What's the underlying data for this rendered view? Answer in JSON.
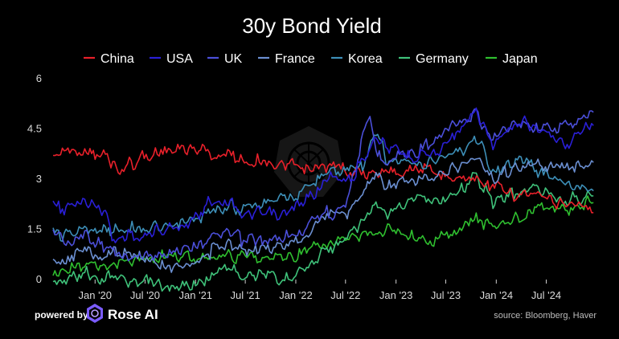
{
  "chart_data": {
    "type": "line",
    "title": "30y Bond Yield",
    "xlabel": "",
    "ylabel": "",
    "x_range": [
      "2019-08-01",
      "2024-12-31"
    ],
    "ylim": [
      0,
      6
    ],
    "y_ticks": [
      0,
      1.5,
      3,
      4.5,
      6
    ],
    "y_tick_labels": [
      "0",
      "1.5",
      "3",
      "4.5",
      "6"
    ],
    "x_ticks": [
      "2020-01-01",
      "2020-07-01",
      "2021-01-01",
      "2021-07-01",
      "2022-01-01",
      "2022-07-01",
      "2023-01-01",
      "2023-07-01",
      "2024-01-01",
      "2024-07-01"
    ],
    "x_tick_labels": [
      "Jan '20",
      "Jul '20",
      "Jan '21",
      "Jul '21",
      "Jan '22",
      "Jul '22",
      "Jan '23",
      "Jul '23",
      "Jan '24",
      "Jul '24"
    ],
    "grid": false,
    "legend_position": "top",
    "series": [
      {
        "name": "China",
        "color": "#e8202a",
        "x": [
          "2019-08-01",
          "2019-10-01",
          "2019-12-01",
          "2020-02-01",
          "2020-04-01",
          "2020-06-01",
          "2020-08-01",
          "2020-10-01",
          "2020-12-01",
          "2021-02-01",
          "2021-04-01",
          "2021-06-01",
          "2021-08-01",
          "2021-10-01",
          "2021-12-01",
          "2022-02-01",
          "2022-04-01",
          "2022-06-01",
          "2022-08-01",
          "2022-10-01",
          "2022-12-01",
          "2023-02-01",
          "2023-04-01",
          "2023-06-01",
          "2023-08-01",
          "2023-10-01",
          "2023-12-01",
          "2024-02-01",
          "2024-04-01",
          "2024-06-01",
          "2024-08-01",
          "2024-10-01",
          "2024-12-20"
        ],
        "y": [
          3.7,
          3.85,
          3.9,
          3.7,
          3.3,
          3.55,
          3.75,
          3.85,
          3.9,
          3.85,
          3.7,
          3.7,
          3.5,
          3.5,
          3.4,
          3.35,
          3.35,
          3.35,
          3.2,
          3.15,
          3.25,
          3.3,
          3.3,
          3.2,
          3.05,
          3.0,
          2.85,
          2.65,
          2.5,
          2.5,
          2.35,
          2.3,
          2.0
        ]
      },
      {
        "name": "USA",
        "color": "#2a1fd6",
        "x": [
          "2019-08-01",
          "2019-10-01",
          "2019-12-01",
          "2020-02-01",
          "2020-03-15",
          "2020-05-01",
          "2020-07-01",
          "2020-09-01",
          "2020-11-01",
          "2021-01-01",
          "2021-03-01",
          "2021-05-01",
          "2021-07-01",
          "2021-09-01",
          "2021-11-01",
          "2022-01-01",
          "2022-03-01",
          "2022-05-01",
          "2022-07-01",
          "2022-08-01",
          "2022-10-20",
          "2022-12-01",
          "2023-02-01",
          "2023-04-01",
          "2023-06-01",
          "2023-08-01",
          "2023-10-20",
          "2023-12-20",
          "2024-02-01",
          "2024-04-20",
          "2024-06-01",
          "2024-08-01",
          "2024-09-15",
          "2024-11-15",
          "2024-12-20"
        ],
        "y": [
          2.15,
          2.2,
          2.35,
          2.05,
          1.1,
          1.35,
          1.3,
          1.45,
          1.6,
          1.85,
          2.35,
          2.3,
          1.95,
          2.05,
          1.9,
          2.15,
          2.45,
          3.1,
          3.0,
          3.1,
          4.35,
          3.95,
          3.8,
          3.7,
          3.85,
          4.3,
          5.05,
          4.05,
          4.3,
          4.75,
          4.5,
          4.15,
          4.0,
          4.55,
          4.6
        ]
      },
      {
        "name": "UK",
        "color": "#4b4fd9",
        "x": [
          "2019-08-01",
          "2019-10-01",
          "2019-12-01",
          "2020-02-01",
          "2020-03-15",
          "2020-05-01",
          "2020-07-01",
          "2020-09-01",
          "2020-11-01",
          "2021-01-01",
          "2021-03-01",
          "2021-05-01",
          "2021-07-01",
          "2021-09-01",
          "2021-11-01",
          "2022-01-01",
          "2022-03-01",
          "2022-05-01",
          "2022-07-01",
          "2022-09-28",
          "2022-10-20",
          "2022-12-01",
          "2023-02-01",
          "2023-04-01",
          "2023-06-01",
          "2023-08-01",
          "2023-10-20",
          "2023-12-20",
          "2024-02-01",
          "2024-04-20",
          "2024-06-01",
          "2024-08-01",
          "2024-09-15",
          "2024-11-15",
          "2024-12-20"
        ],
        "y": [
          1.4,
          1.15,
          1.3,
          1.05,
          0.85,
          0.65,
          0.65,
          0.75,
          0.85,
          0.95,
          1.3,
          1.3,
          1.2,
          1.1,
          1.2,
          1.3,
          1.75,
          2.0,
          2.2,
          4.95,
          3.75,
          3.5,
          3.8,
          3.9,
          4.2,
          4.6,
          4.9,
          4.25,
          4.5,
          4.65,
          4.55,
          4.55,
          4.65,
          4.8,
          5.0
        ]
      },
      {
        "name": "France",
        "color": "#6b8fd1",
        "x": [
          "2019-08-01",
          "2019-10-01",
          "2019-12-01",
          "2020-02-01",
          "2020-03-15",
          "2020-05-01",
          "2020-07-01",
          "2020-09-01",
          "2020-11-01",
          "2021-01-01",
          "2021-03-01",
          "2021-05-01",
          "2021-07-01",
          "2021-09-01",
          "2021-11-01",
          "2022-01-01",
          "2022-03-01",
          "2022-05-01",
          "2022-07-01",
          "2022-09-01",
          "2022-10-20",
          "2022-12-01",
          "2023-02-01",
          "2023-04-01",
          "2023-06-01",
          "2023-08-01",
          "2023-10-20",
          "2023-12-20",
          "2024-02-01",
          "2024-04-20",
          "2024-06-01",
          "2024-08-01",
          "2024-09-15",
          "2024-11-15",
          "2024-12-20"
        ],
        "y": [
          0.45,
          0.7,
          0.85,
          0.6,
          0.95,
          0.75,
          0.6,
          0.45,
          0.4,
          0.45,
          0.85,
          1.1,
          0.9,
          1.0,
          0.95,
          1.2,
          1.5,
          2.0,
          2.0,
          2.5,
          3.1,
          2.8,
          2.9,
          3.0,
          3.1,
          3.4,
          3.65,
          3.0,
          3.2,
          3.4,
          3.5,
          3.3,
          3.4,
          3.5,
          3.5
        ]
      },
      {
        "name": "Korea",
        "color": "#3d8fb8",
        "x": [
          "2019-08-01",
          "2019-10-01",
          "2019-12-01",
          "2020-02-01",
          "2020-03-15",
          "2020-05-01",
          "2020-07-01",
          "2020-09-01",
          "2020-11-01",
          "2021-01-01",
          "2021-03-01",
          "2021-05-01",
          "2021-07-01",
          "2021-09-01",
          "2021-11-01",
          "2022-01-01",
          "2022-03-01",
          "2022-05-01",
          "2022-07-01",
          "2022-09-01",
          "2022-10-20",
          "2022-12-01",
          "2023-02-01",
          "2023-04-01",
          "2023-06-01",
          "2023-08-01",
          "2023-10-20",
          "2023-12-20",
          "2024-02-01",
          "2024-04-20",
          "2024-06-01",
          "2024-08-01",
          "2024-09-15",
          "2024-11-15",
          "2024-12-20"
        ],
        "y": [
          1.3,
          1.45,
          1.6,
          1.45,
          1.5,
          1.55,
          1.5,
          1.55,
          1.65,
          1.75,
          2.15,
          2.15,
          2.15,
          2.25,
          2.45,
          2.4,
          2.85,
          3.25,
          3.3,
          3.4,
          4.35,
          3.55,
          3.5,
          3.35,
          3.55,
          3.75,
          4.2,
          3.25,
          3.4,
          3.6,
          3.3,
          3.0,
          2.85,
          2.8,
          2.65
        ]
      },
      {
        "name": "Germany",
        "color": "#3fc27a",
        "x": [
          "2019-08-01",
          "2019-10-01",
          "2019-12-01",
          "2020-02-01",
          "2020-03-15",
          "2020-05-01",
          "2020-07-01",
          "2020-09-01",
          "2020-11-01",
          "2021-01-01",
          "2021-03-01",
          "2021-05-01",
          "2021-07-01",
          "2021-09-01",
          "2021-11-01",
          "2022-01-01",
          "2022-03-01",
          "2022-05-01",
          "2022-07-01",
          "2022-09-01",
          "2022-10-20",
          "2022-12-01",
          "2023-02-01",
          "2023-04-01",
          "2023-06-01",
          "2023-08-01",
          "2023-10-20",
          "2023-12-20",
          "2024-02-01",
          "2024-04-20",
          "2024-06-01",
          "2024-08-01",
          "2024-09-15",
          "2024-11-15",
          "2024-12-20"
        ],
        "y": [
          -0.1,
          -0.05,
          0.2,
          0.0,
          0.1,
          -0.05,
          -0.1,
          -0.15,
          -0.25,
          -0.15,
          0.15,
          0.35,
          0.1,
          0.2,
          0.0,
          0.2,
          0.5,
          1.0,
          1.2,
          1.65,
          2.3,
          1.95,
          2.35,
          2.45,
          2.3,
          2.5,
          3.2,
          2.3,
          2.45,
          2.7,
          2.65,
          2.5,
          2.4,
          2.45,
          2.5
        ]
      },
      {
        "name": "Japan",
        "color": "#2fbf2f",
        "x": [
          "2019-08-01",
          "2019-10-01",
          "2019-12-01",
          "2020-02-01",
          "2020-03-15",
          "2020-05-01",
          "2020-07-01",
          "2020-09-01",
          "2020-11-01",
          "2021-01-01",
          "2021-03-01",
          "2021-05-01",
          "2021-07-01",
          "2021-09-01",
          "2021-11-01",
          "2022-01-01",
          "2022-03-01",
          "2022-05-01",
          "2022-07-01",
          "2022-09-01",
          "2022-10-20",
          "2022-12-01",
          "2023-02-01",
          "2023-04-01",
          "2023-06-01",
          "2023-08-01",
          "2023-10-20",
          "2023-12-20",
          "2024-02-01",
          "2024-04-20",
          "2024-06-01",
          "2024-08-01",
          "2024-09-15",
          "2024-11-15",
          "2024-12-20"
        ],
        "y": [
          0.2,
          0.3,
          0.45,
          0.4,
          0.45,
          0.55,
          0.6,
          0.65,
          0.65,
          0.65,
          0.75,
          0.7,
          0.65,
          0.7,
          0.7,
          0.75,
          0.9,
          1.0,
          1.25,
          1.3,
          1.4,
          1.55,
          1.45,
          1.2,
          1.25,
          1.45,
          1.8,
          1.6,
          1.7,
          1.95,
          2.2,
          2.05,
          2.1,
          2.3,
          2.3
        ]
      }
    ]
  },
  "footer": {
    "powered_label": "powered by",
    "brand_name": "Rose AI",
    "source": "source: Bloomberg, Haver"
  },
  "logo_icon": "rose-ai-logo-icon",
  "watermark_icon": "rose-ai-watermark-icon"
}
